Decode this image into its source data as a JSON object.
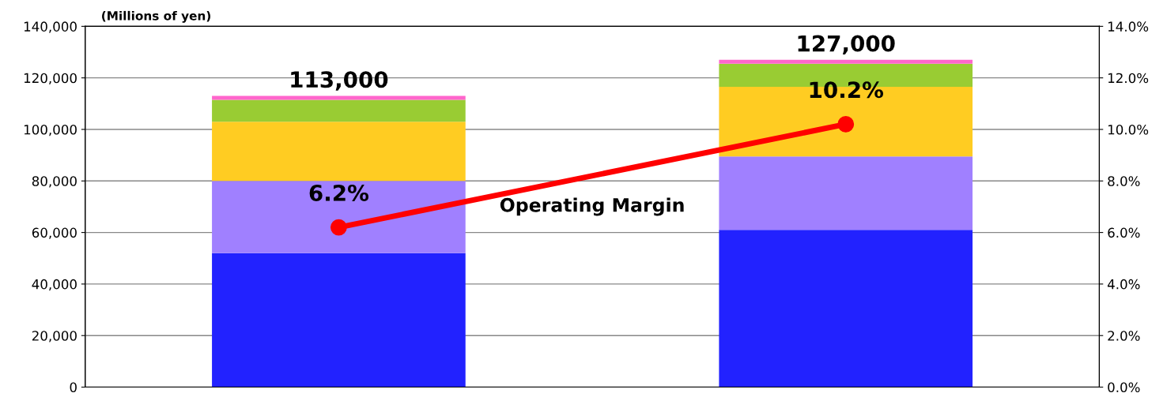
{
  "chart_data": {
    "type": "bar",
    "stacked": true,
    "ylabel": "(Millions of yen)",
    "categories": [
      null,
      null
    ],
    "series": [
      {
        "color": "#2222ff",
        "values": [
          52000,
          61000
        ]
      },
      {
        "color": "#a080ff",
        "values": [
          28000,
          28500
        ]
      },
      {
        "color": "#ffcc22",
        "values": [
          23000,
          27000
        ]
      },
      {
        "color": "#99cc33",
        "values": [
          8500,
          9000
        ]
      },
      {
        "color": "#ff66cc",
        "values": [
          1500,
          1500
        ]
      },
      {
        "type": "line",
        "axis": "y2",
        "color": "#ff0000",
        "marker": "circle",
        "values": [
          6.2,
          10.2
        ],
        "value_labels": [
          "6.2%",
          "10.2%"
        ]
      }
    ],
    "totals": [
      "113,000",
      "127,000"
    ],
    "annotations": [
      "Operating Margin"
    ],
    "ylim": [
      0,
      140000
    ],
    "yticks": [
      0,
      {
        "value": 20000,
        "label": "20,000"
      },
      {
        "value": 40000,
        "label": "40,000"
      },
      {
        "value": 60000,
        "label": "60,000"
      },
      {
        "value": 80000,
        "label": "80,000"
      },
      {
        "value": 100000,
        "label": "100,000"
      },
      {
        "value": 120000,
        "label": "120,000"
      },
      {
        "value": 140000,
        "label": "140,000"
      }
    ],
    "y2lim": [
      0,
      14
    ],
    "y2ticks": [
      {
        "value": 0,
        "label": "0.0%"
      },
      {
        "value": 2,
        "label": "2.0%"
      },
      {
        "value": 4,
        "label": "4.0%"
      },
      {
        "value": 6,
        "label": "6.0%"
      },
      {
        "value": 8,
        "label": "8.0%"
      },
      {
        "value": 10,
        "label": "10.0%"
      },
      {
        "value": 12,
        "label": "12.0%"
      },
      {
        "value": 14,
        "label": "14.0%"
      }
    ],
    "grid": "y"
  }
}
